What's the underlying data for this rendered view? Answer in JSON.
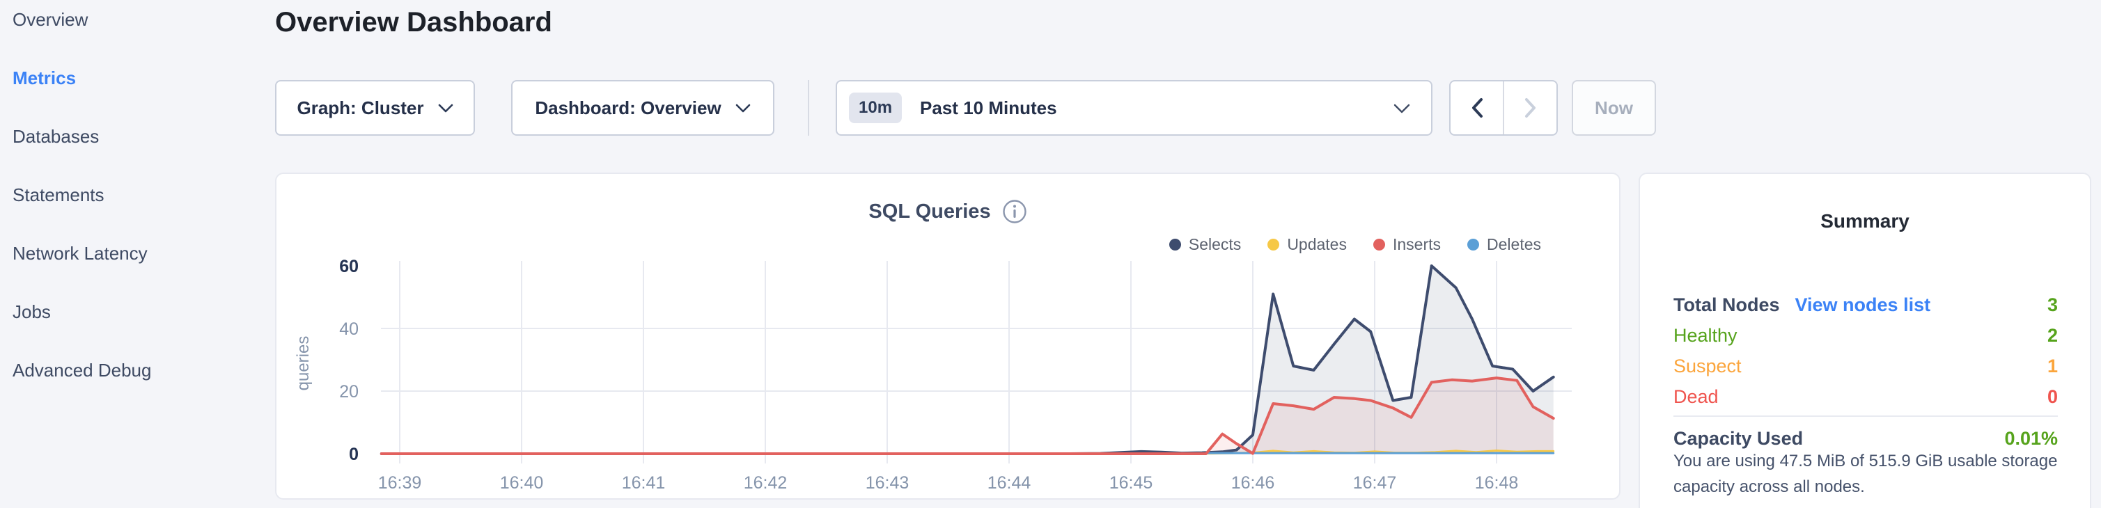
{
  "sidebar": {
    "items": [
      {
        "label": "Overview"
      },
      {
        "label": "Metrics"
      },
      {
        "label": "Databases"
      },
      {
        "label": "Statements"
      },
      {
        "label": "Network Latency"
      },
      {
        "label": "Jobs"
      },
      {
        "label": "Advanced Debug"
      }
    ],
    "active_item": "Metrics"
  },
  "header": {
    "title": "Overview Dashboard"
  },
  "controls": {
    "graph_dropdown": {
      "value": "Graph: Cluster"
    },
    "dashboard_dropdown": {
      "value": "Dashboard: Overview"
    },
    "time_window": {
      "badge": "10m",
      "label": "Past 10 Minutes"
    },
    "now_button_label": "Now"
  },
  "chart_panel": {
    "title": "SQL Queries",
    "chart_data": {
      "type": "area",
      "title": "SQL Queries",
      "ylabel": "queries",
      "ylim": [
        0,
        60
      ],
      "y_ticks": [
        0,
        20,
        40,
        60
      ],
      "x_ticks": [
        "16:39",
        "16:40",
        "16:41",
        "16:42",
        "16:43",
        "16:44",
        "16:45",
        "16:46",
        "16:47",
        "16:48"
      ],
      "x_unit": "seconds after 16:39:00",
      "grid": "on",
      "legend_position": "top-right",
      "series": [
        {
          "name": "Selects",
          "color": "#3e4c6e",
          "fill": "rgba(62,76,110,0.10)",
          "width": 4,
          "points": [
            [
              -9,
              0
            ],
            [
              60,
              0
            ],
            [
              150,
              0
            ],
            [
              240,
              0
            ],
            [
              300,
              0
            ],
            [
              330,
              0
            ],
            [
              345,
              0.1
            ],
            [
              355,
              0.4
            ],
            [
              365,
              0.7
            ],
            [
              375,
              0.5
            ],
            [
              385,
              0.2
            ],
            [
              395,
              0.3
            ],
            [
              405,
              0.6
            ],
            [
              412,
              1.2
            ],
            [
              420,
              6
            ],
            [
              430,
              51
            ],
            [
              440,
              28
            ],
            [
              450,
              26.7
            ],
            [
              460,
              35
            ],
            [
              470,
              43
            ],
            [
              478,
              39
            ],
            [
              489,
              17
            ],
            [
              498,
              18
            ],
            [
              508,
              60
            ],
            [
              520,
              53
            ],
            [
              528,
              43
            ],
            [
              538,
              28
            ],
            [
              548,
              27
            ],
            [
              558,
              20
            ],
            [
              568,
              24.5
            ]
          ]
        },
        {
          "name": "Updates",
          "color": "#f6c846",
          "fill": "rgba(246,200,70,0.15)",
          "width": 3,
          "points": [
            [
              -9,
              0
            ],
            [
              150,
              0
            ],
            [
              300,
              0
            ],
            [
              400,
              0.1
            ],
            [
              420,
              0.3
            ],
            [
              430,
              0.9
            ],
            [
              440,
              0.4
            ],
            [
              450,
              0.8
            ],
            [
              460,
              0.4
            ],
            [
              470,
              0.3
            ],
            [
              480,
              0.7
            ],
            [
              490,
              0.3
            ],
            [
              500,
              0.3
            ],
            [
              510,
              0.5
            ],
            [
              520,
              0.9
            ],
            [
              530,
              0.5
            ],
            [
              540,
              1
            ],
            [
              550,
              0.6
            ],
            [
              560,
              0.8
            ],
            [
              568,
              0.8
            ]
          ]
        },
        {
          "name": "Inserts",
          "color": "#e2615e",
          "fill": "rgba(226,97,94,0.10)",
          "width": 4,
          "points": [
            [
              -9,
              0
            ],
            [
              100,
              0
            ],
            [
              200,
              0
            ],
            [
              300,
              0
            ],
            [
              360,
              0
            ],
            [
              397,
              0
            ],
            [
              405,
              6.3
            ],
            [
              412,
              3.2
            ],
            [
              420,
              0.1
            ],
            [
              430,
              16
            ],
            [
              440,
              15.3
            ],
            [
              450,
              14.2
            ],
            [
              460,
              18
            ],
            [
              470,
              17.6
            ],
            [
              478,
              17
            ],
            [
              489,
              14.6
            ],
            [
              498,
              11.6
            ],
            [
              508,
              22.8
            ],
            [
              518,
              23.6
            ],
            [
              528,
              23.2
            ],
            [
              540,
              24.2
            ],
            [
              550,
              23.4
            ],
            [
              558,
              15
            ],
            [
              568,
              11.3
            ]
          ]
        },
        {
          "name": "Deletes",
          "color": "#5b9fd6",
          "fill": null,
          "width": 3,
          "points": [
            [
              397,
              0.2
            ],
            [
              450,
              0.2
            ],
            [
              510,
              0.2
            ],
            [
              568,
              0.2
            ]
          ]
        }
      ]
    }
  },
  "summary": {
    "title": "Summary",
    "rows": [
      {
        "label": "Total Nodes",
        "link": "View nodes list",
        "value": "3",
        "color": "green"
      },
      {
        "label": "Healthy",
        "value": "2",
        "color": "green"
      },
      {
        "label": "Suspect",
        "value": "1",
        "color": "orange"
      },
      {
        "label": "Dead",
        "value": "0",
        "color": "red"
      }
    ],
    "capacity": {
      "label": "Capacity Used",
      "value": "0.01%"
    },
    "description": "You are using 47.5 MiB of 515.9 GiB usable storage capacity across all nodes."
  },
  "colors": {
    "bg": "#f4f5f9",
    "ink": "#1d2129",
    "slate": "#3e4a63",
    "muted_axis": "#8594ab",
    "bold_axis": "#243353",
    "gridline": "#e7e9f0",
    "panel_border": "#e7e9f0",
    "ctl_border": "#c9cfdc",
    "divider": "#d8dbe4",
    "blue": "#3b82f6",
    "green": "#56a31c",
    "orange": "#fba53c",
    "red": "#ef544e"
  }
}
